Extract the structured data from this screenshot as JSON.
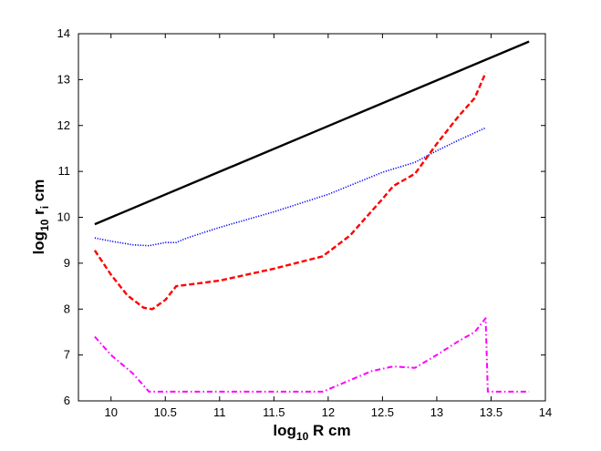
{
  "chart_data": {
    "type": "line",
    "xlabel": {
      "prefix": "log",
      "sub": "10",
      "suffix": " R cm"
    },
    "ylabel": {
      "prefix": "log",
      "sub": "10",
      "mid": " r",
      "sub2": "i",
      "suffix": " cm"
    },
    "xlim": [
      9.7,
      14
    ],
    "ylim": [
      6,
      14
    ],
    "xticks": [
      10,
      10.5,
      11,
      11.5,
      12,
      12.5,
      13,
      13.5,
      14
    ],
    "xtick_labels": [
      "10",
      "10.5",
      "11",
      "11.5",
      "12",
      "12.5",
      "13",
      "13.5",
      "14"
    ],
    "yticks": [
      6,
      7,
      8,
      9,
      10,
      11,
      12,
      13,
      14
    ],
    "ytick_labels": [
      "6",
      "7",
      "8",
      "9",
      "10",
      "11",
      "12",
      "13",
      "14"
    ],
    "grid": false,
    "series": [
      {
        "color": "#000000",
        "style": "solid",
        "x": [
          9.85,
          13.85
        ],
        "y": [
          9.85,
          13.83
        ]
      },
      {
        "color": "#0000ff",
        "style": "dotted",
        "x": [
          9.85,
          10.0,
          10.2,
          10.35,
          10.5,
          10.6,
          10.7,
          11.0,
          11.5,
          12.0,
          12.5,
          12.8,
          13.0,
          13.2,
          13.45
        ],
        "y": [
          9.55,
          9.48,
          9.4,
          9.38,
          9.45,
          9.45,
          9.55,
          9.78,
          10.12,
          10.5,
          10.98,
          11.2,
          11.45,
          11.68,
          11.95
        ]
      },
      {
        "color": "#ff0000",
        "style": "dashed",
        "x": [
          9.85,
          10.0,
          10.15,
          10.3,
          10.38,
          10.5,
          10.6,
          11.0,
          11.5,
          11.95,
          12.2,
          12.5,
          12.6,
          12.8,
          13.0,
          13.2,
          13.35,
          13.45
        ],
        "y": [
          9.28,
          8.75,
          8.3,
          8.03,
          8.0,
          8.2,
          8.5,
          8.62,
          8.88,
          9.15,
          9.6,
          10.4,
          10.68,
          10.95,
          11.6,
          12.2,
          12.6,
          13.15
        ]
      },
      {
        "color": "#ff00ff",
        "style": "dashdot",
        "x": [
          9.85,
          10.0,
          10.2,
          10.35,
          11.0,
          11.5,
          11.95,
          12.2,
          12.4,
          12.6,
          12.8,
          13.0,
          13.2,
          13.35,
          13.45,
          13.47,
          13.85
        ],
        "y": [
          7.4,
          7.0,
          6.6,
          6.2,
          6.2,
          6.2,
          6.2,
          6.45,
          6.65,
          6.75,
          6.72,
          7.0,
          7.3,
          7.5,
          7.8,
          6.2,
          6.2
        ]
      }
    ]
  }
}
